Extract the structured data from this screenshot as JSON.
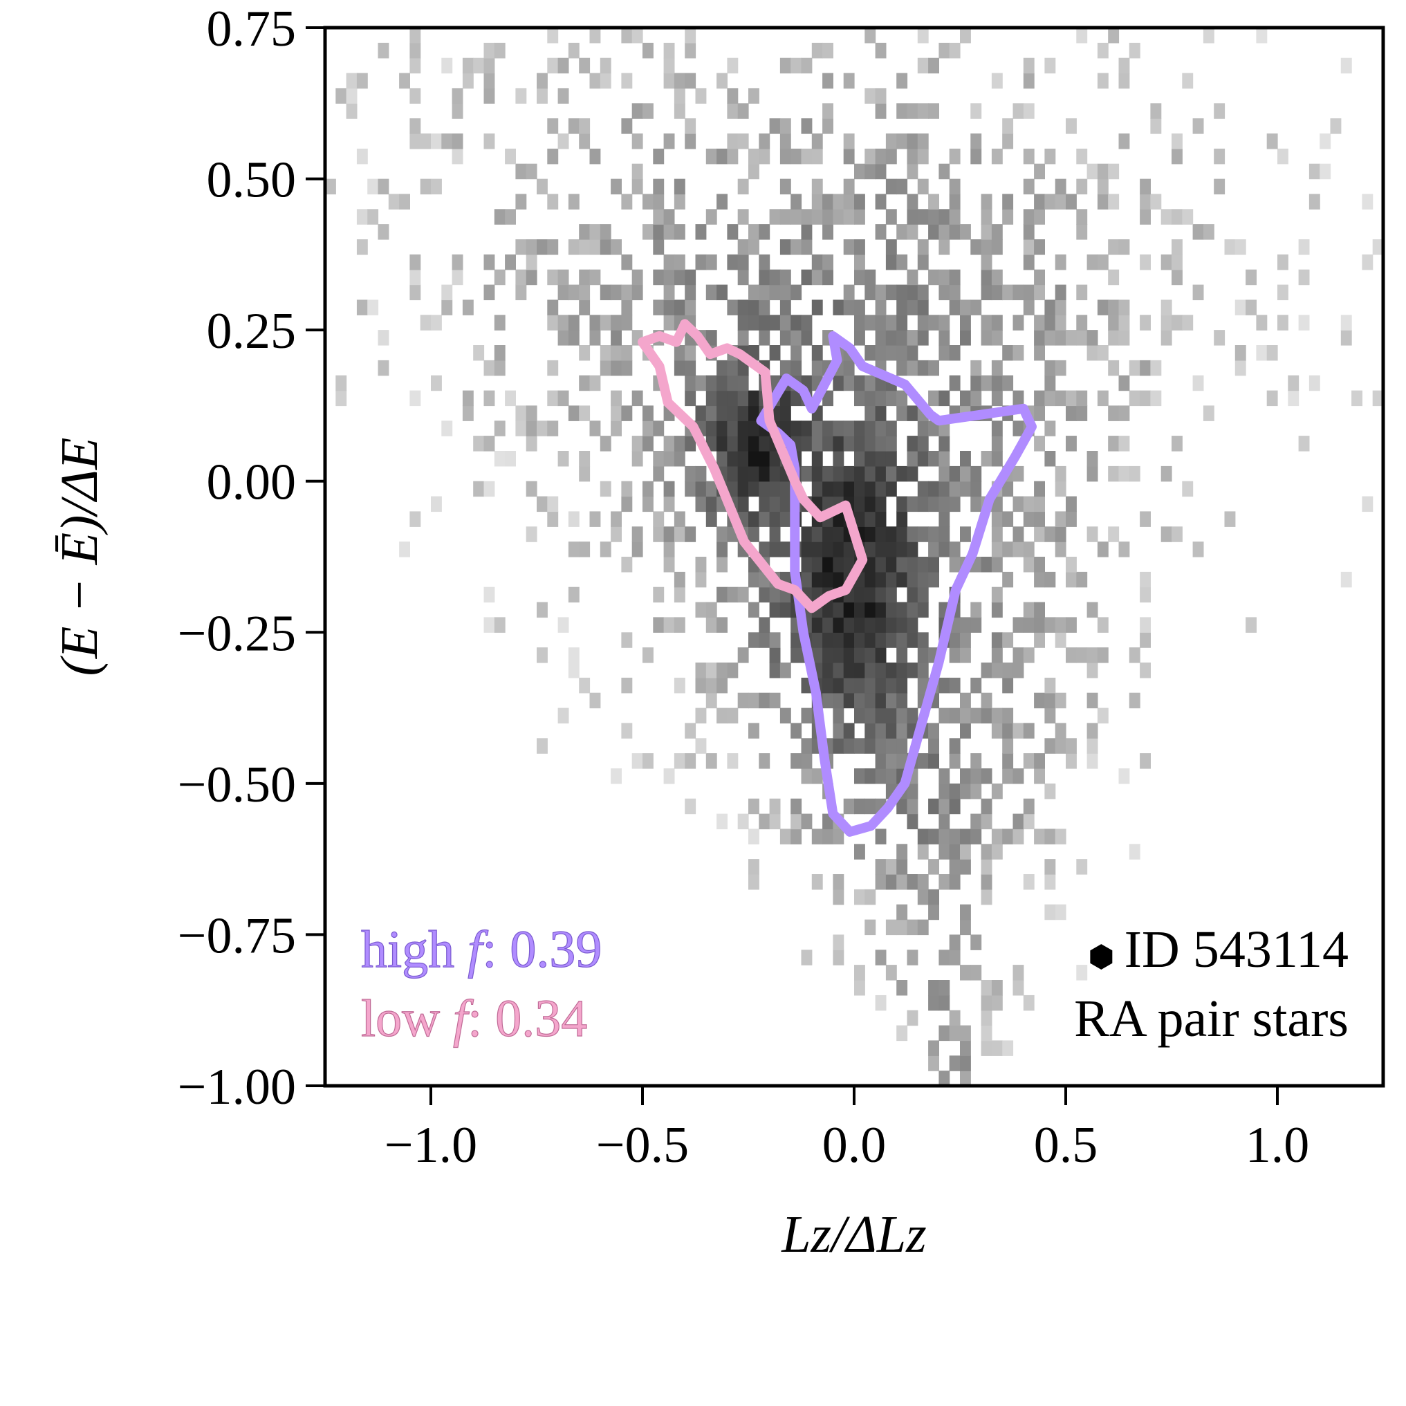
{
  "chart_data": {
    "type": "heatmap",
    "title": "",
    "xlabel": "Lz/ΔLz",
    "ylabel": "(E − Ē)/ΔE",
    "xlim": [
      -1.25,
      1.25
    ],
    "ylim": [
      -1.0,
      0.75
    ],
    "x_ticks": [
      -1.0,
      -0.5,
      0.0,
      0.5,
      1.0
    ],
    "x_tick_labels": [
      "−1.0",
      "−0.5",
      "0.0",
      "0.5",
      "1.0"
    ],
    "y_ticks": [
      0.75,
      0.5,
      0.25,
      0.0,
      -0.25,
      -0.5,
      -0.75,
      -1.0
    ],
    "y_tick_labels": [
      "0.75",
      "0.50",
      "0.25",
      "0.00",
      "−0.25",
      "−0.50",
      "−0.75",
      "−1.00"
    ],
    "grid": false,
    "histogram": {
      "description": "2D density histogram of all stars, grayscale (darker = denser)",
      "bin_size": [
        0.025,
        0.025
      ],
      "colormap": "gray_r"
    },
    "series": [
      {
        "name": "high f",
        "color": "#b08cff",
        "kind": "contour",
        "x": [
          -0.22,
          -0.16,
          -0.12,
          -0.1,
          -0.04,
          -0.05,
          -0.01,
          0.02,
          0.12,
          0.18,
          0.2,
          0.4,
          0.42,
          0.38,
          0.32,
          0.28,
          0.24,
          0.2,
          0.16,
          0.12,
          0.08,
          0.04,
          -0.01,
          -0.05,
          -0.07,
          -0.09,
          -0.12,
          -0.14,
          -0.14,
          -0.15,
          -0.18
        ],
        "y": [
          0.1,
          0.17,
          0.15,
          0.12,
          0.2,
          0.24,
          0.22,
          0.19,
          0.16,
          0.11,
          0.1,
          0.12,
          0.09,
          0.04,
          -0.03,
          -0.12,
          -0.18,
          -0.3,
          -0.4,
          -0.5,
          -0.54,
          -0.57,
          -0.58,
          -0.55,
          -0.46,
          -0.35,
          -0.25,
          -0.15,
          0.02,
          0.06,
          0.08
        ]
      },
      {
        "name": "low f",
        "color": "#f4a6cc",
        "kind": "contour",
        "x": [
          -0.5,
          -0.46,
          -0.42,
          -0.4,
          -0.37,
          -0.34,
          -0.3,
          -0.27,
          -0.21,
          -0.2,
          -0.17,
          -0.14,
          -0.12,
          -0.08,
          -0.02,
          0.02,
          -0.02,
          -0.06,
          -0.1,
          -0.14,
          -0.18,
          -0.26,
          -0.33,
          -0.38,
          -0.44,
          -0.46
        ],
        "y": [
          0.23,
          0.24,
          0.23,
          0.26,
          0.24,
          0.21,
          0.22,
          0.21,
          0.18,
          0.1,
          0.05,
          0.0,
          -0.03,
          -0.06,
          -0.04,
          -0.13,
          -0.18,
          -0.19,
          -0.21,
          -0.18,
          -0.17,
          -0.1,
          0.02,
          0.09,
          0.13,
          0.19
        ]
      }
    ],
    "annotations": {
      "high_f_prefix": "high ",
      "high_f_symbol": "f",
      "high_f_value": ": 0.39",
      "low_f_prefix": "low ",
      "low_f_symbol": "f",
      "low_f_value": ": 0.34",
      "marker": "⬢",
      "id_text": "ID 543114",
      "sample_text": "RA pair stars"
    }
  }
}
